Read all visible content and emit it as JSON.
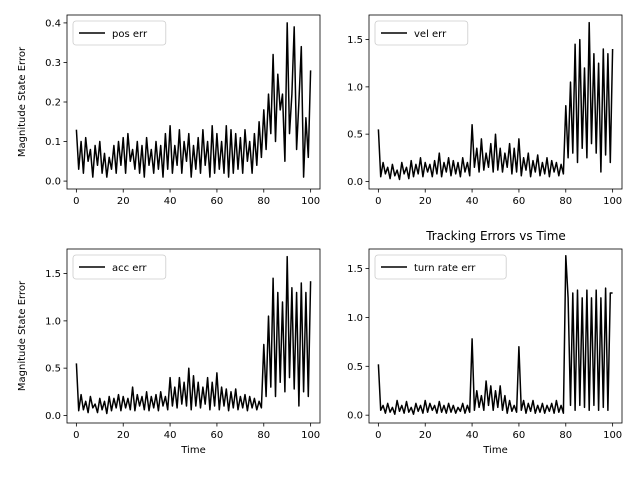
{
  "figure": {
    "title": "Tracking Errors vs Time"
  },
  "chart_data": [
    {
      "type": "line",
      "legend": "pos err",
      "legend_loc": "upper-left",
      "ylabel": "Magnitude State Error",
      "xlabel": "",
      "xlim": [
        -4,
        104
      ],
      "ylim": [
        -0.02,
        0.42
      ],
      "xticks": [
        0,
        20,
        40,
        60,
        80,
        100
      ],
      "yticks": [
        0.0,
        0.1,
        0.2,
        0.3,
        0.4
      ],
      "ytick_labels": [
        "0.0",
        "0.1",
        "0.2",
        "0.3",
        "0.4"
      ],
      "color": "#000000",
      "x": [
        0,
        1,
        2,
        3,
        4,
        5,
        6,
        7,
        8,
        9,
        10,
        11,
        12,
        13,
        14,
        15,
        16,
        17,
        18,
        19,
        20,
        21,
        22,
        23,
        24,
        25,
        26,
        27,
        28,
        29,
        30,
        31,
        32,
        33,
        34,
        35,
        36,
        37,
        38,
        39,
        40,
        41,
        42,
        43,
        44,
        45,
        46,
        47,
        48,
        49,
        50,
        51,
        52,
        53,
        54,
        55,
        56,
        57,
        58,
        59,
        60,
        61,
        62,
        63,
        64,
        65,
        66,
        67,
        68,
        69,
        70,
        71,
        72,
        73,
        74,
        75,
        76,
        77,
        78,
        79,
        80,
        81,
        82,
        83,
        84,
        85,
        86,
        87,
        88,
        89,
        90,
        91,
        92,
        93,
        94,
        95,
        96,
        97,
        98,
        99,
        100
      ],
      "y": [
        0.13,
        0.03,
        0.1,
        0.02,
        0.11,
        0.05,
        0.08,
        0.01,
        0.09,
        0.04,
        0.1,
        0.02,
        0.07,
        0.01,
        0.06,
        0.03,
        0.09,
        0.02,
        0.1,
        0.04,
        0.11,
        0.02,
        0.12,
        0.05,
        0.08,
        0.03,
        0.1,
        0.02,
        0.09,
        0.01,
        0.11,
        0.04,
        0.08,
        0.02,
        0.1,
        0.03,
        0.09,
        0.01,
        0.12,
        0.03,
        0.14,
        0.02,
        0.09,
        0.04,
        0.13,
        0.02,
        0.1,
        0.05,
        0.12,
        0.01,
        0.09,
        0.03,
        0.11,
        0.02,
        0.13,
        0.04,
        0.1,
        0.01,
        0.14,
        0.02,
        0.12,
        0.03,
        0.1,
        0.02,
        0.14,
        0.01,
        0.13,
        0.02,
        0.12,
        0.03,
        0.11,
        0.02,
        0.13,
        0.05,
        0.1,
        0.02,
        0.12,
        0.04,
        0.15,
        0.06,
        0.18,
        0.08,
        0.22,
        0.12,
        0.32,
        0.1,
        0.27,
        0.18,
        0.22,
        0.05,
        0.4,
        0.12,
        0.22,
        0.39,
        0.08,
        0.2,
        0.34,
        0.01,
        0.16,
        0.06,
        0.28
      ]
    },
    {
      "type": "line",
      "legend": "vel err",
      "legend_loc": "upper-left",
      "ylabel": "",
      "xlabel": "",
      "xlim": [
        -4,
        104
      ],
      "ylim": [
        -0.08,
        1.76
      ],
      "xticks": [
        0,
        20,
        40,
        60,
        80,
        100
      ],
      "yticks": [
        0.0,
        0.5,
        1.0,
        1.5
      ],
      "ytick_labels": [
        "0.0",
        "0.5",
        "1.0",
        "1.5"
      ],
      "color": "#000000",
      "x": [
        0,
        1,
        2,
        3,
        4,
        5,
        6,
        7,
        8,
        9,
        10,
        11,
        12,
        13,
        14,
        15,
        16,
        17,
        18,
        19,
        20,
        21,
        22,
        23,
        24,
        25,
        26,
        27,
        28,
        29,
        30,
        31,
        32,
        33,
        34,
        35,
        36,
        37,
        38,
        39,
        40,
        41,
        42,
        43,
        44,
        45,
        46,
        47,
        48,
        49,
        50,
        51,
        52,
        53,
        54,
        55,
        56,
        57,
        58,
        59,
        60,
        61,
        62,
        63,
        64,
        65,
        66,
        67,
        68,
        69,
        70,
        71,
        72,
        73,
        74,
        75,
        76,
        77,
        78,
        79,
        80,
        81,
        82,
        83,
        84,
        85,
        86,
        87,
        88,
        89,
        90,
        91,
        92,
        93,
        94,
        95,
        96,
        97,
        98,
        99,
        100
      ],
      "y": [
        0.55,
        0.05,
        0.2,
        0.08,
        0.15,
        0.03,
        0.18,
        0.06,
        0.12,
        0.02,
        0.2,
        0.08,
        0.15,
        0.03,
        0.22,
        0.05,
        0.18,
        0.08,
        0.25,
        0.05,
        0.2,
        0.1,
        0.18,
        0.05,
        0.22,
        0.08,
        0.3,
        0.05,
        0.2,
        0.1,
        0.25,
        0.06,
        0.22,
        0.08,
        0.2,
        0.05,
        0.25,
        0.1,
        0.2,
        0.06,
        0.6,
        0.15,
        0.35,
        0.1,
        0.45,
        0.12,
        0.3,
        0.15,
        0.4,
        0.1,
        0.5,
        0.12,
        0.35,
        0.1,
        0.3,
        0.15,
        0.4,
        0.08,
        0.35,
        0.1,
        0.45,
        0.06,
        0.25,
        0.12,
        0.3,
        0.05,
        0.22,
        0.1,
        0.28,
        0.06,
        0.2,
        0.08,
        0.25,
        0.05,
        0.22,
        0.1,
        0.2,
        0.06,
        0.18,
        0.08,
        0.8,
        0.25,
        1.05,
        0.3,
        1.45,
        0.2,
        1.5,
        0.35,
        1.2,
        0.25,
        1.68,
        0.4,
        1.35,
        0.3,
        1.25,
        0.1,
        1.4,
        0.28,
        1.35,
        0.2,
        1.4
      ]
    },
    {
      "type": "line",
      "legend": "acc err",
      "legend_loc": "upper-left",
      "ylabel": "Magnitude State Error",
      "xlabel": "Time",
      "xlim": [
        -4,
        104
      ],
      "ylim": [
        -0.08,
        1.76
      ],
      "xticks": [
        0,
        20,
        40,
        60,
        80,
        100
      ],
      "yticks": [
        0.0,
        0.5,
        1.0,
        1.5
      ],
      "ytick_labels": [
        "0.0",
        "0.5",
        "1.0",
        "1.5"
      ],
      "color": "#000000",
      "x": [
        0,
        1,
        2,
        3,
        4,
        5,
        6,
        7,
        8,
        9,
        10,
        11,
        12,
        13,
        14,
        15,
        16,
        17,
        18,
        19,
        20,
        21,
        22,
        23,
        24,
        25,
        26,
        27,
        28,
        29,
        30,
        31,
        32,
        33,
        34,
        35,
        36,
        37,
        38,
        39,
        40,
        41,
        42,
        43,
        44,
        45,
        46,
        47,
        48,
        49,
        50,
        51,
        52,
        53,
        54,
        55,
        56,
        57,
        58,
        59,
        60,
        61,
        62,
        63,
        64,
        65,
        66,
        67,
        68,
        69,
        70,
        71,
        72,
        73,
        74,
        75,
        76,
        77,
        78,
        79,
        80,
        81,
        82,
        83,
        84,
        85,
        86,
        87,
        88,
        89,
        90,
        91,
        92,
        93,
        94,
        95,
        96,
        97,
        98,
        99,
        100
      ],
      "y": [
        0.55,
        0.05,
        0.22,
        0.06,
        0.15,
        0.03,
        0.2,
        0.08,
        0.12,
        0.03,
        0.18,
        0.06,
        0.15,
        0.02,
        0.2,
        0.05,
        0.18,
        0.08,
        0.22,
        0.05,
        0.2,
        0.08,
        0.18,
        0.06,
        0.3,
        0.05,
        0.22,
        0.1,
        0.2,
        0.06,
        0.25,
        0.05,
        0.2,
        0.08,
        0.22,
        0.05,
        0.25,
        0.1,
        0.2,
        0.06,
        0.4,
        0.1,
        0.3,
        0.08,
        0.4,
        0.12,
        0.35,
        0.1,
        0.5,
        0.06,
        0.42,
        0.1,
        0.35,
        0.08,
        0.3,
        0.12,
        0.4,
        0.06,
        0.35,
        0.1,
        0.45,
        0.06,
        0.3,
        0.1,
        0.28,
        0.05,
        0.25,
        0.08,
        0.28,
        0.06,
        0.2,
        0.08,
        0.22,
        0.05,
        0.2,
        0.08,
        0.18,
        0.06,
        0.15,
        0.08,
        0.75,
        0.2,
        1.05,
        0.3,
        1.45,
        0.2,
        1.3,
        0.35,
        1.2,
        0.25,
        1.68,
        0.4,
        1.35,
        0.28,
        1.3,
        0.1,
        1.4,
        0.25,
        1.3,
        0.2,
        1.42
      ]
    },
    {
      "type": "line",
      "legend": "turn rate err",
      "legend_loc": "upper-left",
      "ylabel": "",
      "xlabel": "Time",
      "xlim": [
        -4,
        104
      ],
      "ylim": [
        -0.08,
        1.7
      ],
      "xticks": [
        0,
        20,
        40,
        60,
        80,
        100
      ],
      "yticks": [
        0.0,
        0.5,
        1.0,
        1.5
      ],
      "ytick_labels": [
        "0.0",
        "0.5",
        "1.0",
        "1.5"
      ],
      "color": "#000000",
      "x": [
        0,
        1,
        2,
        3,
        4,
        5,
        6,
        7,
        8,
        9,
        10,
        11,
        12,
        13,
        14,
        15,
        16,
        17,
        18,
        19,
        20,
        21,
        22,
        23,
        24,
        25,
        26,
        27,
        28,
        29,
        30,
        31,
        32,
        33,
        34,
        35,
        36,
        37,
        38,
        39,
        40,
        41,
        42,
        43,
        44,
        45,
        46,
        47,
        48,
        49,
        50,
        51,
        52,
        53,
        54,
        55,
        56,
        57,
        58,
        59,
        60,
        61,
        62,
        63,
        64,
        65,
        66,
        67,
        68,
        69,
        70,
        71,
        72,
        73,
        74,
        75,
        76,
        77,
        78,
        79,
        80,
        81,
        82,
        83,
        84,
        85,
        86,
        87,
        88,
        89,
        90,
        91,
        92,
        93,
        94,
        95,
        96,
        97,
        98,
        99,
        100
      ],
      "y": [
        0.52,
        0.05,
        0.1,
        0.02,
        0.12,
        0.03,
        0.08,
        0.01,
        0.15,
        0.04,
        0.1,
        0.02,
        0.14,
        0.03,
        0.08,
        0.01,
        0.12,
        0.04,
        0.1,
        0.02,
        0.15,
        0.03,
        0.12,
        0.05,
        0.1,
        0.02,
        0.14,
        0.03,
        0.1,
        0.02,
        0.12,
        0.03,
        0.1,
        0.02,
        0.08,
        0.04,
        0.12,
        0.02,
        0.1,
        0.03,
        0.78,
        0.05,
        0.25,
        0.08,
        0.2,
        0.05,
        0.35,
        0.1,
        0.3,
        0.05,
        0.25,
        0.08,
        0.3,
        0.05,
        0.2,
        0.02,
        0.15,
        0.04,
        0.1,
        0.03,
        0.7,
        0.05,
        0.15,
        0.02,
        0.12,
        0.04,
        0.15,
        0.02,
        0.1,
        0.03,
        0.12,
        0.02,
        0.1,
        0.04,
        0.12,
        0.02,
        0.15,
        0.03,
        0.1,
        0.02,
        1.63,
        1.2,
        0.1,
        1.25,
        0.05,
        1.28,
        0.1,
        1.2,
        0.08,
        1.28,
        0.05,
        1.2,
        0.1,
        1.28,
        0.05,
        1.2,
        0.08,
        1.3,
        0.05,
        1.25,
        1.25
      ]
    }
  ]
}
